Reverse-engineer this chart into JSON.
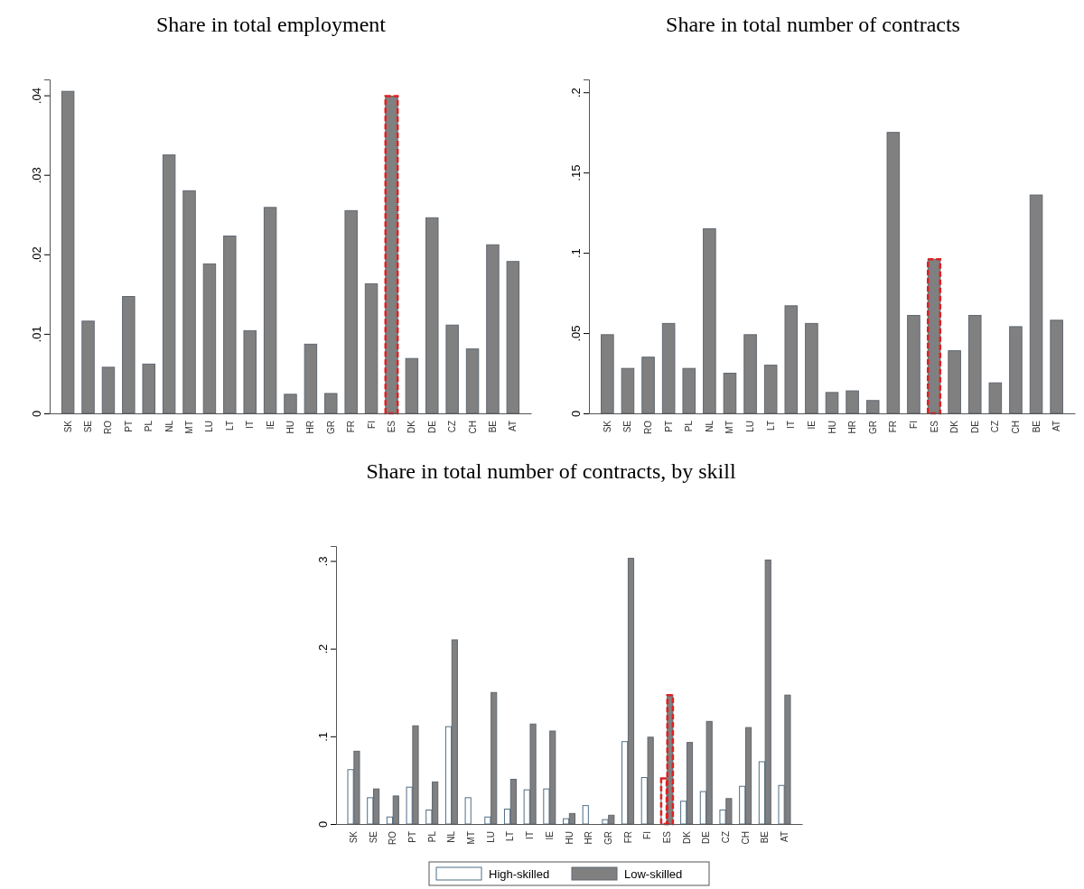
{
  "chart_data": [
    {
      "type": "bar",
      "title": "Share in total employment",
      "categories": [
        "SK",
        "SE",
        "RO",
        "PT",
        "PL",
        "NL",
        "MT",
        "LU",
        "LT",
        "IT",
        "IE",
        "HU",
        "HR",
        "GR",
        "FR",
        "FI",
        "ES",
        "DK",
        "DE",
        "CZ",
        "CH",
        "BE",
        "AT"
      ],
      "values": [
        0.0405,
        0.0116,
        0.0058,
        0.0147,
        0.0062,
        0.0325,
        0.028,
        0.0188,
        0.0223,
        0.0104,
        0.0259,
        0.0024,
        0.0087,
        0.0025,
        0.0255,
        0.0163,
        0.0399,
        0.0069,
        0.0246,
        0.0111,
        0.0081,
        0.0212,
        0.0191
      ],
      "color": "#808080",
      "ylim": [
        0,
        0.042
      ],
      "yticks": [
        {
          "value": 0,
          "label": "0"
        },
        {
          "value": 0.01,
          "label": ".01"
        },
        {
          "value": 0.02,
          "label": ".02"
        },
        {
          "value": 0.03,
          "label": ".03"
        },
        {
          "value": 0.04,
          "label": ".04"
        }
      ],
      "grid": false,
      "legend": false
    },
    {
      "type": "bar",
      "title": "Share in total number of contracts",
      "categories": [
        "SK",
        "SE",
        "RO",
        "PT",
        "PL",
        "NL",
        "MT",
        "LU",
        "LT",
        "IT",
        "IE",
        "HU",
        "HR",
        "GR",
        "FR",
        "FI",
        "ES",
        "DK",
        "DE",
        "CZ",
        "CH",
        "BE",
        "AT"
      ],
      "values": [
        0.049,
        0.028,
        0.035,
        0.056,
        0.028,
        0.115,
        0.025,
        0.049,
        0.03,
        0.067,
        0.056,
        0.013,
        0.014,
        0.008,
        0.175,
        0.061,
        0.096,
        0.039,
        0.061,
        0.019,
        0.054,
        0.136,
        0.058
      ],
      "color": "#808080",
      "ylim": [
        0,
        0.208
      ],
      "yticks": [
        {
          "value": 0,
          "label": "0"
        },
        {
          "value": 0.05,
          "label": ".05"
        },
        {
          "value": 0.1,
          "label": ".1"
        },
        {
          "value": 0.15,
          "label": ".15"
        },
        {
          "value": 0.2,
          "label": ".2"
        }
      ],
      "grid": false,
      "legend": false
    },
    {
      "type": "bar",
      "title": "Share in total number of contracts, by skill",
      "categories": [
        "SK",
        "SE",
        "RO",
        "PT",
        "PL",
        "NL",
        "MT",
        "LU",
        "LT",
        "IT",
        "IE",
        "HU",
        "HR",
        "GR",
        "FR",
        "FI",
        "ES",
        "DK",
        "DE",
        "CZ",
        "CH",
        "BE",
        "AT"
      ],
      "series": [
        {
          "name": "High-skilled",
          "color": "#ffffff",
          "values": [
            0.062,
            0.03,
            0.008,
            0.042,
            0.016,
            0.111,
            0.03,
            0.008,
            0.017,
            0.039,
            0.04,
            0.006,
            0.021,
            0.005,
            0.094,
            0.053,
            0.052,
            0.026,
            0.037,
            0.016,
            0.043,
            0.071,
            0.044
          ]
        },
        {
          "name": "Low-skilled",
          "color": "#808080",
          "values": [
            0.083,
            0.04,
            0.032,
            0.112,
            0.048,
            0.21,
            null,
            0.15,
            0.051,
            0.114,
            0.106,
            0.012,
            null,
            0.01,
            0.303,
            0.099,
            0.147,
            0.093,
            0.117,
            0.029,
            0.11,
            0.301,
            0.147
          ]
        }
      ],
      "ylim": [
        0,
        0.317
      ],
      "yticks": [
        {
          "value": 0,
          "label": "0"
        },
        {
          "value": 0.1,
          "label": ".1"
        },
        {
          "value": 0.2,
          "label": ".2"
        },
        {
          "value": 0.3,
          "label": ".3"
        }
      ],
      "grid": false,
      "legend": "bottom"
    }
  ]
}
